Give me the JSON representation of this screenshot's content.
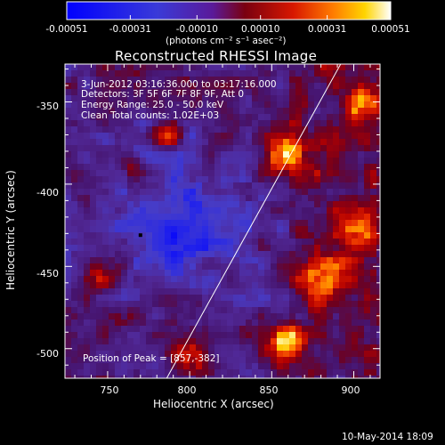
{
  "colorbar": {
    "tick_labels": [
      "-0.00051",
      "-0.00031",
      "-0.00010",
      "0.00010",
      "0.00031",
      "0.00051"
    ],
    "values": [
      -0.00051,
      -0.00031,
      -0.0001,
      0.0001,
      0.00031,
      0.00051
    ],
    "units_label": "(photons cm⁻² s⁻¹ asec⁻²)"
  },
  "chart_data": {
    "type": "heatmap",
    "title": "Reconstructed RHESSI Image",
    "xlabel": "Heliocentric X (arcsec)",
    "ylabel": "Heliocentric Y (arcsec)",
    "xlim": [
      724,
      916
    ],
    "ylim": [
      -518,
      -327
    ],
    "x_ticks": [
      "750",
      "800",
      "850",
      "900"
    ],
    "x_tick_values": [
      750,
      800,
      850,
      900
    ],
    "y_ticks": [
      "-350",
      "-400",
      "-450",
      "-500"
    ],
    "y_tick_values": [
      -350,
      -400,
      -450,
      -500
    ],
    "annotations": [
      "3-Jun-2012 03:16:36.000 to 03:17:16.000",
      "Detectors: 3F 5F 6F 7F 8F 9F, Att 0",
      "Energy Range: 25.0 - 50.0 keV",
      "Clean     Total counts: 1.02E+03"
    ],
    "peak_label": "Position of Peak = [857,-382]",
    "peak": [
      857,
      -382
    ],
    "limb_line": [
      [
        786,
        -518
      ],
      [
        892,
        -327
      ]
    ],
    "colormap": "blue-purple-red-yellow-white",
    "grid": false
  },
  "footer": {
    "timestamp": "10-May-2014 18:09"
  }
}
